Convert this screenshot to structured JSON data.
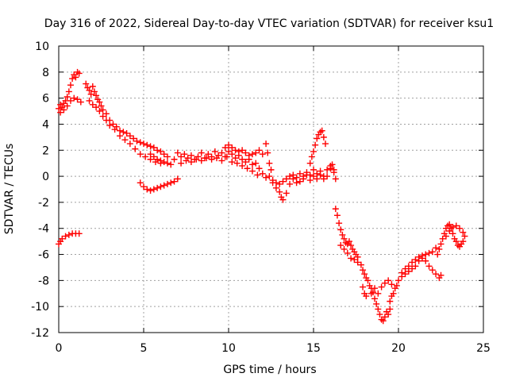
{
  "chart_data": {
    "type": "scatter",
    "title": "Day 316 of 2022, Sidereal Day-to-day VTEC variation (SDTVAR) for receiver ksu1",
    "xlabel": "GPS time / hours",
    "ylabel": "SDTVAR / TECUs",
    "xlim": [
      0,
      25
    ],
    "ylim": [
      -12,
      10
    ],
    "xticks": [
      0,
      5,
      10,
      15,
      20,
      25
    ],
    "yticks": [
      10,
      8,
      6,
      4,
      2,
      0,
      -2,
      -4,
      -6,
      -8,
      -10,
      -12
    ],
    "grid": true,
    "marker": "+",
    "series": [
      {
        "name": "SDTVAR",
        "color": "#ff0000",
        "points": [
          [
            0.0,
            5.2
          ],
          [
            0.1,
            5.5
          ],
          [
            0.2,
            5.3
          ],
          [
            0.3,
            5.6
          ],
          [
            0.4,
            5.8
          ],
          [
            0.5,
            6.1
          ],
          [
            0.6,
            6.5
          ],
          [
            0.7,
            7.0
          ],
          [
            0.8,
            7.5
          ],
          [
            0.9,
            7.8
          ],
          [
            1.0,
            7.6
          ],
          [
            1.1,
            8.0
          ],
          [
            1.2,
            7.9
          ],
          [
            0.1,
            4.9
          ],
          [
            0.3,
            5.1
          ],
          [
            0.5,
            5.4
          ],
          [
            0.7,
            5.8
          ],
          [
            0.9,
            6.0
          ],
          [
            1.1,
            5.9
          ],
          [
            1.3,
            5.7
          ],
          [
            0.0,
            -5.2
          ],
          [
            0.1,
            -5.0
          ],
          [
            0.2,
            -4.8
          ],
          [
            0.4,
            -4.6
          ],
          [
            0.6,
            -4.5
          ],
          [
            0.8,
            -4.4
          ],
          [
            1.0,
            -4.4
          ],
          [
            1.2,
            -4.4
          ],
          [
            1.6,
            7.1
          ],
          [
            1.7,
            6.8
          ],
          [
            1.8,
            6.6
          ],
          [
            1.9,
            6.3
          ],
          [
            2.0,
            6.9
          ],
          [
            2.1,
            6.5
          ],
          [
            2.2,
            6.2
          ],
          [
            2.3,
            5.9
          ],
          [
            2.4,
            5.7
          ],
          [
            2.5,
            5.4
          ],
          [
            2.6,
            5.1
          ],
          [
            2.8,
            4.8
          ],
          [
            3.0,
            4.3
          ],
          [
            3.2,
            4.0
          ],
          [
            3.4,
            3.8
          ],
          [
            3.6,
            3.5
          ],
          [
            3.8,
            3.4
          ],
          [
            4.0,
            3.3
          ],
          [
            4.2,
            3.1
          ],
          [
            4.4,
            2.9
          ],
          [
            4.6,
            2.7
          ],
          [
            4.8,
            2.6
          ],
          [
            5.0,
            2.5
          ],
          [
            5.2,
            2.4
          ],
          [
            5.4,
            2.3
          ],
          [
            5.6,
            2.2
          ],
          [
            5.8,
            2.0
          ],
          [
            6.0,
            1.9
          ],
          [
            6.2,
            1.7
          ],
          [
            6.4,
            1.5
          ],
          [
            1.8,
            5.8
          ],
          [
            2.0,
            5.5
          ],
          [
            2.2,
            5.3
          ],
          [
            2.4,
            5.0
          ],
          [
            2.6,
            4.6
          ],
          [
            2.8,
            4.3
          ],
          [
            3.0,
            3.9
          ],
          [
            3.3,
            3.6
          ],
          [
            3.6,
            3.1
          ],
          [
            3.9,
            2.8
          ],
          [
            4.2,
            2.5
          ],
          [
            4.5,
            2.1
          ],
          [
            4.8,
            1.7
          ],
          [
            5.1,
            1.5
          ],
          [
            5.4,
            1.3
          ],
          [
            5.7,
            1.1
          ],
          [
            6.0,
            1.0
          ],
          [
            4.8,
            -0.5
          ],
          [
            5.0,
            -0.8
          ],
          [
            5.2,
            -1.0
          ],
          [
            5.4,
            -1.1
          ],
          [
            5.6,
            -1.0
          ],
          [
            5.8,
            -0.9
          ],
          [
            6.0,
            -0.8
          ],
          [
            6.2,
            -0.7
          ],
          [
            6.4,
            -0.6
          ],
          [
            6.6,
            -0.5
          ],
          [
            6.8,
            -0.4
          ],
          [
            7.0,
            -0.2
          ],
          [
            5.4,
            1.7
          ],
          [
            5.6,
            1.5
          ],
          [
            5.8,
            1.3
          ],
          [
            6.0,
            1.2
          ],
          [
            6.2,
            1.1
          ],
          [
            6.4,
            1.0
          ],
          [
            6.6,
            0.9
          ],
          [
            6.8,
            1.3
          ],
          [
            7.0,
            1.8
          ],
          [
            7.2,
            1.5
          ],
          [
            7.4,
            1.7
          ],
          [
            7.6,
            1.4
          ],
          [
            7.8,
            1.6
          ],
          [
            8.0,
            1.3
          ],
          [
            8.2,
            1.5
          ],
          [
            8.4,
            1.8
          ],
          [
            8.6,
            1.4
          ],
          [
            8.8,
            1.7
          ],
          [
            9.0,
            1.5
          ],
          [
            9.2,
            1.9
          ],
          [
            9.4,
            1.6
          ],
          [
            9.6,
            1.8
          ],
          [
            9.8,
            1.5
          ],
          [
            10.0,
            1.9
          ],
          [
            10.2,
            1.7
          ],
          [
            10.4,
            1.4
          ],
          [
            10.6,
            1.6
          ],
          [
            10.8,
            1.3
          ],
          [
            11.0,
            1.1
          ],
          [
            11.2,
            1.3
          ],
          [
            11.4,
            0.9
          ],
          [
            11.6,
            1.0
          ],
          [
            11.8,
            0.6
          ],
          [
            7.2,
            1.0
          ],
          [
            7.5,
            1.2
          ],
          [
            7.8,
            1.1
          ],
          [
            8.1,
            1.3
          ],
          [
            8.4,
            1.2
          ],
          [
            8.7,
            1.4
          ],
          [
            9.0,
            1.3
          ],
          [
            9.3,
            1.4
          ],
          [
            9.6,
            1.2
          ],
          [
            9.9,
            1.5
          ],
          [
            10.2,
            1.1
          ],
          [
            10.5,
            1.0
          ],
          [
            10.8,
            0.8
          ],
          [
            11.1,
            0.6
          ],
          [
            11.4,
            0.4
          ],
          [
            11.7,
            0.1
          ],
          [
            9.8,
            2.2
          ],
          [
            10.0,
            2.4
          ],
          [
            10.2,
            2.2
          ],
          [
            10.4,
            2.0
          ],
          [
            10.6,
            1.9
          ],
          [
            10.8,
            2.0
          ],
          [
            11.0,
            1.8
          ],
          [
            11.2,
            1.6
          ],
          [
            11.4,
            1.7
          ],
          [
            11.6,
            1.8
          ],
          [
            11.8,
            2.0
          ],
          [
            12.0,
            1.7
          ],
          [
            12.0,
            0.2
          ],
          [
            12.2,
            -0.1
          ],
          [
            12.4,
            0.0
          ],
          [
            12.6,
            -0.3
          ],
          [
            12.8,
            -0.5
          ],
          [
            13.0,
            -0.6
          ],
          [
            13.2,
            -0.4
          ],
          [
            13.4,
            -0.2
          ],
          [
            13.6,
            0.0
          ],
          [
            13.8,
            0.1
          ],
          [
            14.0,
            -0.1
          ],
          [
            14.2,
            0.2
          ],
          [
            14.4,
            0.0
          ],
          [
            14.6,
            0.3
          ],
          [
            14.8,
            0.1
          ],
          [
            15.0,
            0.5
          ],
          [
            15.2,
            0.2
          ],
          [
            15.4,
            0.4
          ],
          [
            15.6,
            0.0
          ],
          [
            15.8,
            0.5
          ],
          [
            16.0,
            0.6
          ],
          [
            16.2,
            0.3
          ],
          [
            12.2,
            2.5
          ],
          [
            12.3,
            1.8
          ],
          [
            12.4,
            1.0
          ],
          [
            12.5,
            0.5
          ],
          [
            12.6,
            -0.5
          ],
          [
            12.8,
            -0.9
          ],
          [
            13.0,
            -1.2
          ],
          [
            13.1,
            -1.6
          ],
          [
            13.2,
            -1.8
          ],
          [
            13.4,
            -1.3
          ],
          [
            13.6,
            -0.6
          ],
          [
            13.8,
            -0.2
          ],
          [
            14.0,
            -0.5
          ],
          [
            14.2,
            -0.4
          ],
          [
            14.4,
            -0.2
          ],
          [
            14.6,
            0.1
          ],
          [
            14.8,
            -0.3
          ],
          [
            15.0,
            0.0
          ],
          [
            15.2,
            -0.2
          ],
          [
            15.4,
            0.1
          ],
          [
            15.6,
            -0.2
          ],
          [
            15.8,
            0.0
          ],
          [
            16.0,
            0.8
          ],
          [
            16.1,
            0.9
          ],
          [
            16.2,
            0.5
          ],
          [
            16.3,
            -0.2
          ],
          [
            14.8,
            1.0
          ],
          [
            14.9,
            1.5
          ],
          [
            15.0,
            1.9
          ],
          [
            15.1,
            2.4
          ],
          [
            15.2,
            2.9
          ],
          [
            15.3,
            3.2
          ],
          [
            15.4,
            3.4
          ],
          [
            15.5,
            3.5
          ],
          [
            15.6,
            3.0
          ],
          [
            15.7,
            2.5
          ],
          [
            16.3,
            -2.5
          ],
          [
            16.4,
            -3.0
          ],
          [
            16.5,
            -3.6
          ],
          [
            16.6,
            -4.1
          ],
          [
            16.7,
            -4.5
          ],
          [
            16.8,
            -4.8
          ],
          [
            16.9,
            -5.1
          ],
          [
            17.0,
            -5.2
          ],
          [
            17.1,
            -5.0
          ],
          [
            17.2,
            -5.3
          ],
          [
            17.3,
            -5.6
          ],
          [
            17.4,
            -5.8
          ],
          [
            17.5,
            -6.0
          ],
          [
            17.6,
            -6.2
          ],
          [
            16.6,
            -5.3
          ],
          [
            16.8,
            -5.6
          ],
          [
            17.0,
            -5.9
          ],
          [
            17.2,
            -6.3
          ],
          [
            17.4,
            -6.4
          ],
          [
            17.6,
            -6.6
          ],
          [
            17.8,
            -6.8
          ],
          [
            17.9,
            -7.2
          ],
          [
            18.0,
            -7.5
          ],
          [
            18.1,
            -7.8
          ],
          [
            18.2,
            -8.0
          ],
          [
            18.3,
            -8.4
          ],
          [
            18.4,
            -8.6
          ],
          [
            18.5,
            -8.9
          ],
          [
            18.6,
            -9.4
          ],
          [
            18.7,
            -9.8
          ],
          [
            18.8,
            -10.2
          ],
          [
            18.9,
            -10.6
          ],
          [
            19.0,
            -11.0
          ],
          [
            19.1,
            -11.1
          ],
          [
            19.2,
            -10.8
          ],
          [
            19.3,
            -10.4
          ],
          [
            19.4,
            -10.6
          ],
          [
            19.5,
            -10.2
          ],
          [
            17.9,
            -8.5
          ],
          [
            18.0,
            -9.0
          ],
          [
            18.1,
            -9.2
          ],
          [
            18.4,
            -9.0
          ],
          [
            18.6,
            -8.6
          ],
          [
            18.8,
            -9.0
          ],
          [
            19.0,
            -8.5
          ],
          [
            19.2,
            -8.2
          ],
          [
            19.4,
            -8.0
          ],
          [
            19.6,
            -8.3
          ],
          [
            19.5,
            -9.6
          ],
          [
            19.6,
            -9.2
          ],
          [
            19.7,
            -9.0
          ],
          [
            19.8,
            -8.6
          ],
          [
            19.9,
            -8.4
          ],
          [
            20.0,
            -8.0
          ],
          [
            20.2,
            -7.7
          ],
          [
            20.4,
            -7.5
          ],
          [
            20.6,
            -7.3
          ],
          [
            20.8,
            -7.1
          ],
          [
            21.0,
            -6.9
          ],
          [
            21.2,
            -6.5
          ],
          [
            21.4,
            -6.3
          ],
          [
            21.6,
            -6.5
          ],
          [
            21.8,
            -6.9
          ],
          [
            22.0,
            -7.2
          ],
          [
            22.2,
            -7.5
          ],
          [
            22.4,
            -7.8
          ],
          [
            22.5,
            -7.6
          ],
          [
            20.2,
            -7.4
          ],
          [
            20.4,
            -7.1
          ],
          [
            20.6,
            -6.9
          ],
          [
            20.8,
            -6.6
          ],
          [
            21.0,
            -6.4
          ],
          [
            21.2,
            -6.2
          ],
          [
            21.4,
            -6.1
          ],
          [
            21.6,
            -6.0
          ],
          [
            21.8,
            -5.9
          ],
          [
            22.0,
            -5.8
          ],
          [
            22.2,
            -5.5
          ],
          [
            22.3,
            -6.0
          ],
          [
            22.4,
            -5.6
          ],
          [
            22.5,
            -5.2
          ],
          [
            22.6,
            -4.8
          ],
          [
            22.7,
            -4.4
          ],
          [
            22.8,
            -4.0
          ],
          [
            22.9,
            -3.8
          ],
          [
            23.0,
            -3.7
          ],
          [
            23.1,
            -4.0
          ],
          [
            23.2,
            -4.4
          ],
          [
            23.3,
            -4.8
          ],
          [
            23.4,
            -5.0
          ],
          [
            23.5,
            -5.3
          ],
          [
            23.6,
            -5.4
          ],
          [
            23.7,
            -5.2
          ],
          [
            23.8,
            -5.0
          ],
          [
            23.9,
            -4.6
          ],
          [
            22.8,
            -4.6
          ],
          [
            23.0,
            -4.2
          ],
          [
            23.2,
            -3.9
          ],
          [
            23.4,
            -3.8
          ],
          [
            23.6,
            -4.0
          ],
          [
            23.8,
            -4.3
          ]
        ]
      }
    ]
  }
}
